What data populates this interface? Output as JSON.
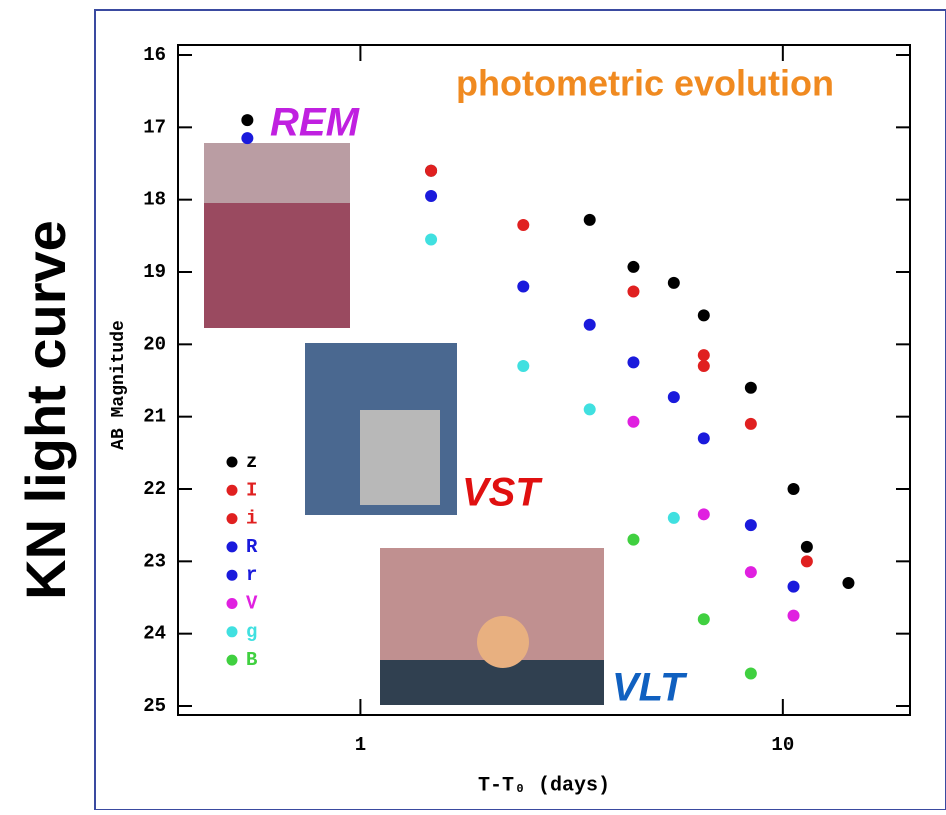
{
  "side_title": "KN light curve",
  "chart_data": {
    "type": "scatter",
    "title": "photometric evolution",
    "x_label": "T-T₀  (days)",
    "y_label": "AB Magnitude",
    "xscale": "log",
    "xlim": [
      0.37,
      20
    ],
    "xticks": [
      1,
      10
    ],
    "ylim": [
      25,
      16
    ],
    "yticks": [
      16,
      17,
      18,
      19,
      20,
      21,
      22,
      23,
      24,
      25
    ],
    "annotations": [
      {
        "text": "REM",
        "color": "#c020e0"
      },
      {
        "text": "VST",
        "color": "#e01010"
      },
      {
        "text": "VLT",
        "color": "#1060c0"
      }
    ],
    "series": [
      {
        "name": "z",
        "color": "#000000",
        "x": [
          0.54,
          1.47,
          3.49,
          4.43,
          5.52,
          6.5,
          8.4,
          10.6,
          11.4,
          14.3
        ],
        "values": [
          16.9,
          17.6,
          18.28,
          18.93,
          19.15,
          19.6,
          20.6,
          22.0,
          22.8,
          23.3
        ]
      },
      {
        "name": "I",
        "color": "#e02020",
        "x": [
          2.43,
          6.5,
          8.4,
          11.4
        ],
        "values": [
          18.35,
          20.15,
          21.1,
          23.0
        ]
      },
      {
        "name": "i",
        "color": "#e02020",
        "x": [
          1.47,
          4.43,
          6.5
        ],
        "values": [
          17.6,
          19.27,
          20.3
        ]
      },
      {
        "name": "R",
        "color": "#1a1adc",
        "x": [
          0.54,
          1.47,
          2.43,
          4.43,
          6.5,
          8.4,
          10.6
        ],
        "values": [
          17.15,
          17.95,
          19.2,
          20.25,
          21.3,
          22.5,
          23.35
        ]
      },
      {
        "name": "r",
        "color": "#1a1adc",
        "x": [
          3.49,
          5.52
        ],
        "values": [
          19.73,
          20.73
        ]
      },
      {
        "name": "V",
        "color": "#e020e0",
        "x": [
          4.43,
          6.5,
          8.4,
          10.6
        ],
        "values": [
          21.07,
          22.35,
          23.15,
          23.75
        ]
      },
      {
        "name": "g",
        "color": "#40e0e0",
        "x": [
          1.47,
          2.43,
          3.49,
          5.52
        ],
        "values": [
          18.55,
          20.3,
          20.9,
          22.4
        ]
      },
      {
        "name": "B",
        "color": "#40d040",
        "x": [
          4.43,
          6.5,
          8.4
        ],
        "values": [
          22.7,
          23.8,
          24.55
        ]
      }
    ]
  }
}
